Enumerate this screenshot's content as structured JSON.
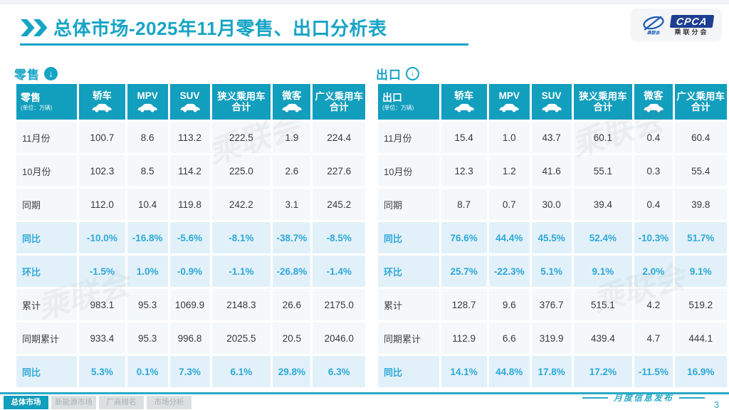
{
  "header": {
    "title_primary": "总体市场",
    "title_secondary": "-2025年11月零售、出口分析表",
    "logo": {
      "acronym": "CPCA",
      "name_cn": "乘联分会",
      "mark_caption": "乘联会"
    }
  },
  "watermark_text": "乘联会",
  "tables": [
    {
      "section_label": "零售",
      "corner_label": "零售",
      "unit_label": "(单位：万辆)",
      "columns": [
        {
          "lines": [
            "轿车"
          ],
          "icon": true
        },
        {
          "lines": [
            "MPV"
          ],
          "icon": true
        },
        {
          "lines": [
            "SUV"
          ],
          "icon": true
        },
        {
          "lines": [
            "狭义乘用车",
            "合计"
          ],
          "icon": false
        },
        {
          "lines": [
            "微客"
          ],
          "icon": true
        },
        {
          "lines": [
            "广义乘用车",
            "合计"
          ],
          "icon": false
        }
      ],
      "rows": [
        {
          "label": "11月份",
          "highlight": false,
          "values": [
            "100.7",
            "8.6",
            "113.2",
            "222.5",
            "1.9",
            "224.4"
          ]
        },
        {
          "label": "10月份",
          "highlight": false,
          "values": [
            "102.3",
            "8.5",
            "114.2",
            "225.0",
            "2.6",
            "227.6"
          ]
        },
        {
          "label": "同期",
          "highlight": false,
          "values": [
            "112.0",
            "10.4",
            "119.8",
            "242.2",
            "3.1",
            "245.2"
          ]
        },
        {
          "label": "同比",
          "highlight": true,
          "values": [
            "-10.0%",
            "-16.8%",
            "-5.6%",
            "-8.1%",
            "-38.7%",
            "-8.5%"
          ]
        },
        {
          "label": "环比",
          "highlight": true,
          "values": [
            "-1.5%",
            "1.0%",
            "-0.9%",
            "-1.1%",
            "-26.8%",
            "-1.4%"
          ]
        },
        {
          "label": "累计",
          "highlight": false,
          "values": [
            "983.1",
            "95.3",
            "1069.9",
            "2148.3",
            "26.6",
            "2175.0"
          ]
        },
        {
          "label": "同期累计",
          "highlight": false,
          "values": [
            "933.4",
            "95.3",
            "996.8",
            "2025.5",
            "20.5",
            "2046.0"
          ]
        },
        {
          "label": "同比",
          "highlight": true,
          "values": [
            "5.3%",
            "0.1%",
            "7.3%",
            "6.1%",
            "29.8%",
            "6.3%"
          ]
        }
      ]
    },
    {
      "section_label": "出口",
      "corner_label": "出口",
      "unit_label": "(单位：万辆)",
      "columns": [
        {
          "lines": [
            "轿车"
          ],
          "icon": true
        },
        {
          "lines": [
            "MPV"
          ],
          "icon": true
        },
        {
          "lines": [
            "SUV"
          ],
          "icon": true
        },
        {
          "lines": [
            "狭义乘用车",
            "合计"
          ],
          "icon": false
        },
        {
          "lines": [
            "微客"
          ],
          "icon": true
        },
        {
          "lines": [
            "广义乘用车",
            "合计"
          ],
          "icon": false
        }
      ],
      "rows": [
        {
          "label": "11月份",
          "highlight": false,
          "values": [
            "15.4",
            "1.0",
            "43.7",
            "60.1",
            "0.4",
            "60.4"
          ]
        },
        {
          "label": "10月份",
          "highlight": false,
          "values": [
            "12.3",
            "1.2",
            "41.6",
            "55.1",
            "0.3",
            "55.4"
          ]
        },
        {
          "label": "同期",
          "highlight": false,
          "values": [
            "8.7",
            "0.7",
            "30.0",
            "39.4",
            "0.4",
            "39.8"
          ]
        },
        {
          "label": "同比",
          "highlight": true,
          "values": [
            "76.6%",
            "44.4%",
            "45.5%",
            "52.4%",
            "-10.3%",
            "51.7%"
          ]
        },
        {
          "label": "环比",
          "highlight": true,
          "values": [
            "25.7%",
            "-22.3%",
            "5.1%",
            "9.1%",
            "2.0%",
            "9.1%"
          ]
        },
        {
          "label": "累计",
          "highlight": false,
          "values": [
            "128.7",
            "9.6",
            "376.7",
            "515.1",
            "4.2",
            "519.2"
          ]
        },
        {
          "label": "同期累计",
          "highlight": false,
          "values": [
            "112.9",
            "6.6",
            "319.9",
            "439.4",
            "4.7",
            "444.1"
          ]
        },
        {
          "label": "同比",
          "highlight": true,
          "values": [
            "14.1%",
            "44.8%",
            "17.8%",
            "17.2%",
            "-11.5%",
            "16.9%"
          ]
        }
      ]
    }
  ],
  "footer": {
    "tabs": [
      {
        "label": "总体市场",
        "active": true
      },
      {
        "label": "新能源市场",
        "active": false
      },
      {
        "label": "厂商排名",
        "active": false
      },
      {
        "label": "市场分析",
        "active": false
      }
    ],
    "publish_label": "月度信息发布",
    "page_number": "3"
  },
  "colors": {
    "teal": "#129EBD",
    "title_teal": "#16A4C5",
    "accent_blue": "#2EA8DA",
    "logo_blue": "#1D3F92"
  }
}
